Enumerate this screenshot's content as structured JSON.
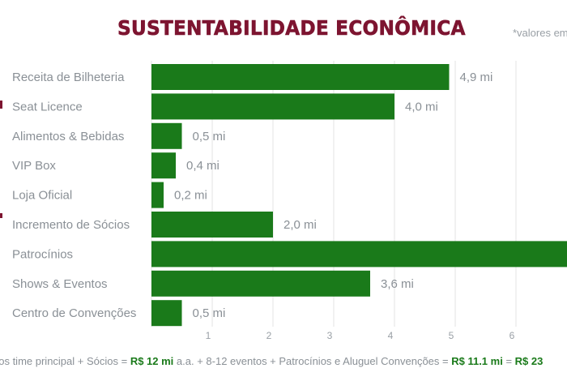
{
  "title": "SUSTENTABILIDADE ECONÔMICA",
  "note": "*valores em",
  "colors": {
    "title": "#7d1430",
    "bar": "#1a7a1a",
    "label": "#8a9096",
    "grid": "#e3e3e3",
    "highlight": "#1a7a1a"
  },
  "chart_data": {
    "type": "bar",
    "orientation": "horizontal",
    "title": "SUSTENTABILIDADE ECONÔMICA",
    "xlabel": "",
    "ylabel": "",
    "xlim": [
      0,
      7
    ],
    "grid": true,
    "categories": [
      "Receita de Bilheteria",
      "Seat Licence",
      "Alimentos & Bebidas",
      "VIP Box",
      "Loja Oficial",
      "Incremento de Sócios",
      "Patrocínios",
      "Shows & Eventos",
      "Centro de Convenções"
    ],
    "values": [
      4.9,
      4.0,
      0.5,
      0.4,
      0.2,
      2.0,
      7.0,
      3.6,
      0.5
    ],
    "value_labels": [
      "4,9 mi",
      "4,0 mi",
      "0,5 mi",
      "0,4 mi",
      "0,2 mi",
      "2,0 mi",
      "",
      "3,6 mi",
      "0,5 mi"
    ],
    "x_ticks": [
      "1",
      "2",
      "3",
      "4",
      "5",
      "6"
    ]
  },
  "footer": {
    "part1": "gos time principal + Sócios = ",
    "value1": "R$ 12 mi",
    "part2": " a.a. +  8-12 eventos + Patrocínios e Aluguel Convenções = ",
    "value2": "R$ 11.1 mi",
    "part3": " = ",
    "value3": "R$ 23"
  }
}
